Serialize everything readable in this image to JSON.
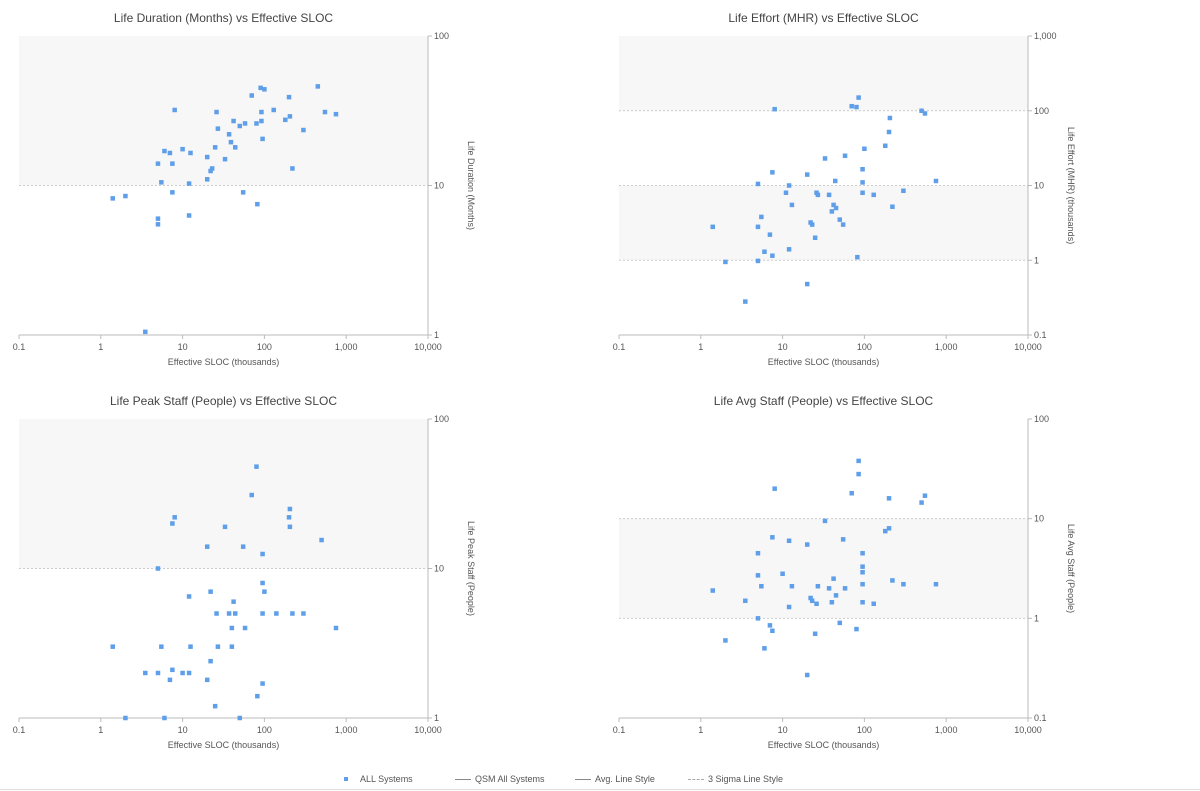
{
  "colors": {
    "point": "#5f9ee8",
    "band": "#f7f7f7",
    "axis": "#bbbbbb",
    "sigma": "#cccccc"
  },
  "legend": {
    "all_systems": "ALL Systems",
    "qsm_all": "QSM All Systems",
    "avg_line": "Avg. Line Style",
    "sigma_line": "3 Sigma Line Style"
  },
  "chart_data": [
    {
      "type": "scatter",
      "title": "Life Duration (Months) vs Effective SLOC",
      "xlabel": "Effective SLOC (thousands)",
      "ylabel": "Life Duration (Months)",
      "xscale": "log",
      "yscale": "log",
      "xlim": [
        0.1,
        10000
      ],
      "ylim": [
        1,
        100
      ],
      "x_ticks": [
        "0.1",
        "1",
        "10",
        "100",
        "1,000",
        "10,000"
      ],
      "y_ticks": [
        "1",
        "10",
        "100"
      ],
      "bands": [
        [
          10,
          100
        ]
      ],
      "sigma_lines": [
        10
      ],
      "series": [
        {
          "points": [
            [
              1.4,
              8.2
            ],
            [
              2,
              8.5
            ],
            [
              3.5,
              1.05
            ],
            [
              5,
              6
            ],
            [
              5,
              5.5
            ],
            [
              5,
              14
            ],
            [
              5.5,
              10.5
            ],
            [
              6,
              17
            ],
            [
              7,
              16.5
            ],
            [
              7.5,
              14
            ],
            [
              7.5,
              9
            ],
            [
              8,
              32
            ],
            [
              10,
              17.5
            ],
            [
              12,
              10.3
            ],
            [
              12,
              6.3
            ],
            [
              12.5,
              16.5
            ],
            [
              20,
              15.5
            ],
            [
              20,
              11
            ],
            [
              22,
              12.5
            ],
            [
              23,
              13
            ],
            [
              25,
              18
            ],
            [
              26,
              31
            ],
            [
              27,
              24
            ],
            [
              33,
              15
            ],
            [
              37,
              22
            ],
            [
              39,
              19.5
            ],
            [
              42,
              27
            ],
            [
              44,
              18
            ],
            [
              50,
              25
            ],
            [
              55,
              9
            ],
            [
              58,
              26
            ],
            [
              70,
              40
            ],
            [
              80,
              26
            ],
            [
              82,
              7.5
            ],
            [
              90,
              45
            ],
            [
              92,
              27
            ],
            [
              92,
              31
            ],
            [
              95,
              20.5
            ],
            [
              100,
              44
            ],
            [
              130,
              32
            ],
            [
              180,
              27.5
            ],
            [
              200,
              39
            ],
            [
              205,
              29
            ],
            [
              220,
              13
            ],
            [
              450,
              46
            ],
            [
              550,
              31
            ],
            [
              300,
              23.5
            ],
            [
              750,
              30
            ]
          ]
        }
      ]
    },
    {
      "type": "scatter",
      "title": "Life Effort (MHR) vs Effective SLOC",
      "xlabel": "Effective SLOC (thousands)",
      "ylabel": "Life Effort (MHR) (thousands)",
      "xscale": "log",
      "yscale": "log",
      "xlim": [
        0.1,
        10000
      ],
      "ylim": [
        0.1,
        1000
      ],
      "x_ticks": [
        "0.1",
        "1",
        "10",
        "100",
        "1,000",
        "10,000"
      ],
      "y_ticks": [
        "0.1",
        "1",
        "10",
        "100",
        "1,000"
      ],
      "bands": [
        [
          100,
          1000
        ],
        [
          1,
          10
        ]
      ],
      "sigma_lines": [
        1,
        10,
        100
      ],
      "series": [
        {
          "points": [
            [
              1.4,
              2.8
            ],
            [
              2,
              0.95
            ],
            [
              3.5,
              0.28
            ],
            [
              5,
              0.98
            ],
            [
              5,
              2.8
            ],
            [
              5,
              10.5
            ],
            [
              5.5,
              3.8
            ],
            [
              6,
              1.3
            ],
            [
              7,
              2.2
            ],
            [
              7.5,
              1.15
            ],
            [
              7.5,
              15
            ],
            [
              8,
              105
            ],
            [
              11,
              8
            ],
            [
              12,
              10
            ],
            [
              12,
              1.4
            ],
            [
              13,
              5.5
            ],
            [
              20,
              0.48
            ],
            [
              20,
              14
            ],
            [
              22,
              3.2
            ],
            [
              23,
              3
            ],
            [
              25,
              2
            ],
            [
              26,
              8
            ],
            [
              27,
              7.5
            ],
            [
              33,
              23
            ],
            [
              37,
              7.5
            ],
            [
              40,
              4.5
            ],
            [
              42,
              5.5
            ],
            [
              44,
              11.5
            ],
            [
              45,
              5
            ],
            [
              50,
              3.5
            ],
            [
              55,
              3
            ],
            [
              58,
              25
            ],
            [
              70,
              115
            ],
            [
              80,
              112
            ],
            [
              82,
              1.1
            ],
            [
              85,
              150
            ],
            [
              95,
              16.5
            ],
            [
              95,
              11
            ],
            [
              95,
              8
            ],
            [
              100,
              31
            ],
            [
              130,
              7.5
            ],
            [
              180,
              34
            ],
            [
              200,
              52
            ],
            [
              205,
              80
            ],
            [
              220,
              5.2
            ],
            [
              300,
              8.5
            ],
            [
              500,
              100
            ],
            [
              550,
              92
            ],
            [
              750,
              11.5
            ]
          ]
        }
      ]
    },
    {
      "type": "scatter",
      "title": "Life Peak Staff (People) vs Effective SLOC",
      "xlabel": "Effective SLOC (thousands)",
      "ylabel": "Life Peak Staff (People)",
      "xscale": "log",
      "yscale": "log",
      "xlim": [
        0.1,
        10000
      ],
      "ylim": [
        1,
        100
      ],
      "x_ticks": [
        "0.1",
        "1",
        "10",
        "100",
        "1,000",
        "10,000"
      ],
      "y_ticks": [
        "1",
        "10",
        "100"
      ],
      "bands": [
        [
          10,
          100
        ]
      ],
      "sigma_lines": [
        10
      ],
      "series": [
        {
          "points": [
            [
              1.4,
              3
            ],
            [
              2,
              1
            ],
            [
              3.5,
              2
            ],
            [
              5,
              2
            ],
            [
              5,
              10
            ],
            [
              5.5,
              3
            ],
            [
              6,
              1
            ],
            [
              7,
              1.8
            ],
            [
              7.5,
              20
            ],
            [
              7.5,
              2.1
            ],
            [
              8,
              22
            ],
            [
              10,
              2
            ],
            [
              12,
              6.5
            ],
            [
              12,
              2
            ],
            [
              12.5,
              3
            ],
            [
              20,
              1.8
            ],
            [
              20,
              14
            ],
            [
              22,
              2.4
            ],
            [
              22,
              7
            ],
            [
              25,
              1.2
            ],
            [
              26,
              5
            ],
            [
              27,
              3
            ],
            [
              33,
              19
            ],
            [
              37,
              5
            ],
            [
              40,
              4
            ],
            [
              40,
              3
            ],
            [
              42,
              6
            ],
            [
              44,
              5
            ],
            [
              50,
              1
            ],
            [
              55,
              14
            ],
            [
              58,
              4
            ],
            [
              70,
              31
            ],
            [
              80,
              48
            ],
            [
              82,
              1.4
            ],
            [
              95,
              12.5
            ],
            [
              95,
              8
            ],
            [
              95,
              5
            ],
            [
              95,
              1.7
            ],
            [
              100,
              7
            ],
            [
              140,
              5
            ],
            [
              200,
              22
            ],
            [
              205,
              25
            ],
            [
              205,
              19
            ],
            [
              220,
              5
            ],
            [
              300,
              5
            ],
            [
              500,
              15.5
            ],
            [
              750,
              4
            ]
          ]
        }
      ]
    },
    {
      "type": "scatter",
      "title": "Life Avg Staff (People) vs Effective SLOC",
      "xlabel": "Effective SLOC (thousands)",
      "ylabel": "Life Avg Staff (People)",
      "xscale": "log",
      "yscale": "log",
      "xlim": [
        0.1,
        10000
      ],
      "ylim": [
        0.1,
        100
      ],
      "x_ticks": [
        "0.1",
        "1",
        "10",
        "100",
        "1,000",
        "10,000"
      ],
      "y_ticks": [
        "0.1",
        "1",
        "10",
        "100"
      ],
      "bands": [
        [
          1,
          10
        ]
      ],
      "sigma_lines": [
        1,
        10
      ],
      "series": [
        {
          "points": [
            [
              1.4,
              1.9
            ],
            [
              2,
              0.6
            ],
            [
              3.5,
              1.5
            ],
            [
              5,
              1
            ],
            [
              5,
              2.7
            ],
            [
              5,
              4.5
            ],
            [
              5.5,
              2.1
            ],
            [
              6,
              0.5
            ],
            [
              7,
              0.85
            ],
            [
              7.5,
              0.75
            ],
            [
              7.5,
              6.5
            ],
            [
              8,
              20
            ],
            [
              10,
              2.8
            ],
            [
              12,
              6
            ],
            [
              12,
              1.3
            ],
            [
              13,
              2.1
            ],
            [
              20,
              0.27
            ],
            [
              20,
              5.5
            ],
            [
              22,
              1.6
            ],
            [
              23,
              1.5
            ],
            [
              25,
              0.7
            ],
            [
              26,
              1.4
            ],
            [
              27,
              2.1
            ],
            [
              33,
              9.5
            ],
            [
              37,
              2
            ],
            [
              40,
              1.45
            ],
            [
              42,
              2.5
            ],
            [
              45,
              1.7
            ],
            [
              50,
              0.9
            ],
            [
              55,
              6.2
            ],
            [
              58,
              2
            ],
            [
              70,
              18
            ],
            [
              80,
              0.78
            ],
            [
              85,
              28
            ],
            [
              85,
              38
            ],
            [
              95,
              4.5
            ],
            [
              95,
              3.3
            ],
            [
              95,
              2.9
            ],
            [
              95,
              2.2
            ],
            [
              95,
              1.45
            ],
            [
              130,
              1.4
            ],
            [
              180,
              7.5
            ],
            [
              200,
              8
            ],
            [
              200,
              16
            ],
            [
              220,
              2.4
            ],
            [
              300,
              2.2
            ],
            [
              500,
              14.5
            ],
            [
              550,
              17
            ],
            [
              750,
              2.2
            ]
          ]
        }
      ]
    }
  ]
}
